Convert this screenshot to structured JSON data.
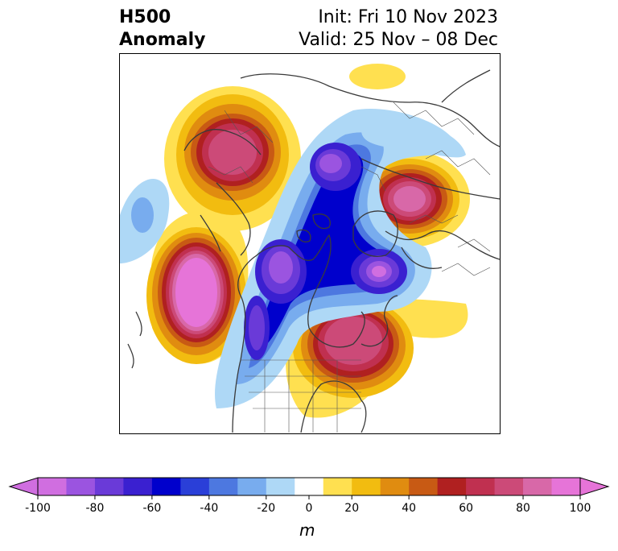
{
  "title": {
    "left_line1": "H500",
    "left_line2": "Anomaly",
    "right_line1": "Init: Fri 10 Nov 2023",
    "right_line2": "Valid: 25 Nov – 08 Dec"
  },
  "colorbar": {
    "label": "m",
    "ticks": [
      "-100",
      "-80",
      "-60",
      "-40",
      "-20",
      "0",
      "20",
      "40",
      "60",
      "80",
      "100"
    ],
    "levels": [
      -100,
      -90,
      -80,
      -70,
      -60,
      -50,
      -40,
      -30,
      -20,
      -10,
      10,
      20,
      30,
      40,
      50,
      60,
      70,
      80,
      90,
      100
    ],
    "colors": [
      "#d06ee0",
      "#9b54e0",
      "#6a3ad8",
      "#3a20d0",
      "#0000cc",
      "#2a3fd8",
      "#4d78e0",
      "#78acee",
      "#aed8f6",
      "#ffffff",
      "#ffe050",
      "#f2bc10",
      "#e08c10",
      "#c85a14",
      "#b02020",
      "#c03050",
      "#cc4a78",
      "#d868a8",
      "#e674d8"
    ],
    "extend": "both"
  },
  "map": {
    "projection": "north-polar-stereographic",
    "variable": "500 hPa geopotential height anomaly"
  }
}
